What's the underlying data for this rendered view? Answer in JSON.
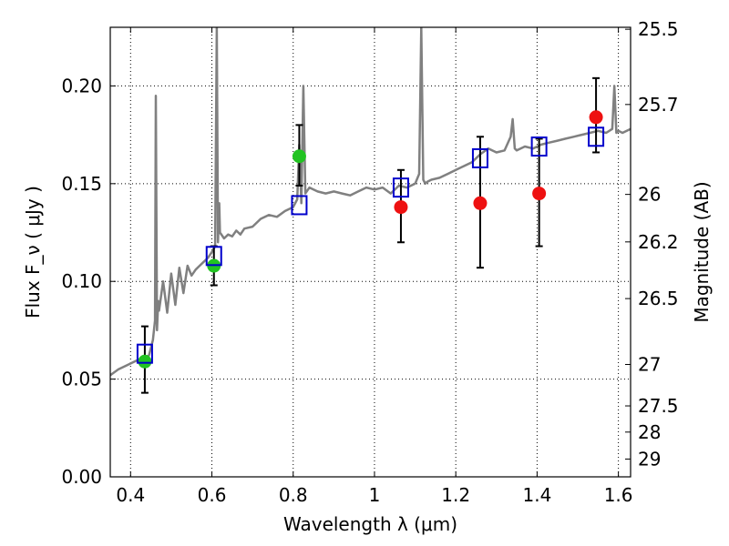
{
  "chart_data": {
    "type": "scatter",
    "title": "",
    "xlabel": "Wavelength  λ (μm)",
    "ylabel": "Flux  F_ν  ( μJy )",
    "y2label": "Magnitude (AB)",
    "xlim": [
      0.35,
      1.63
    ],
    "ylim": [
      0.0,
      0.23
    ],
    "grid": true,
    "xticks": [
      0.4,
      0.6,
      0.8,
      1.0,
      1.2,
      1.4,
      1.6
    ],
    "xtick_labels": [
      "0.4",
      "0.6",
      "0.8",
      "1",
      "1.2",
      "1.4",
      "1.6"
    ],
    "yticks": [
      0.0,
      0.05,
      0.1,
      0.15,
      0.2
    ],
    "ytick_labels": [
      "0.00",
      "0.05",
      "0.10",
      "0.15",
      "0.20"
    ],
    "y2ticks": [
      {
        "label": "25.5",
        "flux": 0.229
      },
      {
        "label": "25.7",
        "flux": 0.1905
      },
      {
        "label": "26",
        "flux": 0.1445
      },
      {
        "label": "26.2",
        "flux": 0.1202
      },
      {
        "label": "26.5",
        "flux": 0.0912
      },
      {
        "label": "27",
        "flux": 0.0575
      },
      {
        "label": "27.5",
        "flux": 0.0363
      },
      {
        "label": "28",
        "flux": 0.0229
      },
      {
        "label": "29",
        "flux": 0.0091
      }
    ],
    "colors": {
      "model_spectrum": "#808080",
      "model_photometry": "#0000cc",
      "detections": "#22c322",
      "upper_limits": "#ee1111",
      "errorbar": "#000000"
    },
    "series": [
      {
        "kind": "model_spectrum",
        "x": [
          0.35,
          0.37,
          0.39,
          0.41,
          0.43,
          0.445,
          0.455,
          0.46,
          0.462,
          0.465,
          0.468,
          0.47,
          0.48,
          0.49,
          0.5,
          0.51,
          0.52,
          0.53,
          0.54,
          0.55,
          0.56,
          0.57,
          0.58,
          0.59,
          0.6,
          0.608,
          0.612,
          0.615,
          0.618,
          0.62,
          0.63,
          0.64,
          0.65,
          0.66,
          0.67,
          0.68,
          0.7,
          0.72,
          0.74,
          0.76,
          0.78,
          0.8,
          0.81,
          0.815,
          0.82,
          0.825,
          0.83,
          0.84,
          0.85,
          0.86,
          0.88,
          0.9,
          0.92,
          0.94,
          0.96,
          0.98,
          1.0,
          1.02,
          1.04,
          1.06,
          1.08,
          1.1,
          1.11,
          1.115,
          1.12,
          1.125,
          1.13,
          1.14,
          1.16,
          1.18,
          1.2,
          1.22,
          1.24,
          1.26,
          1.28,
          1.3,
          1.32,
          1.335,
          1.34,
          1.345,
          1.35,
          1.37,
          1.39,
          1.41,
          1.43,
          1.45,
          1.47,
          1.49,
          1.51,
          1.53,
          1.55,
          1.57,
          1.585,
          1.59,
          1.595,
          1.6,
          1.61,
          1.63
        ],
        "y": [
          0.052,
          0.055,
          0.057,
          0.059,
          0.061,
          0.062,
          0.07,
          0.08,
          0.195,
          0.075,
          0.09,
          0.085,
          0.1,
          0.084,
          0.104,
          0.088,
          0.107,
          0.094,
          0.108,
          0.103,
          0.106,
          0.108,
          0.11,
          0.112,
          0.115,
          0.118,
          0.23,
          0.12,
          0.14,
          0.125,
          0.122,
          0.124,
          0.123,
          0.126,
          0.124,
          0.127,
          0.128,
          0.132,
          0.134,
          0.133,
          0.136,
          0.138,
          0.142,
          0.17,
          0.14,
          0.2,
          0.145,
          0.148,
          0.147,
          0.146,
          0.145,
          0.146,
          0.145,
          0.144,
          0.146,
          0.148,
          0.147,
          0.148,
          0.145,
          0.149,
          0.148,
          0.15,
          0.155,
          0.23,
          0.152,
          0.15,
          0.151,
          0.152,
          0.153,
          0.155,
          0.157,
          0.159,
          0.161,
          0.165,
          0.168,
          0.166,
          0.167,
          0.174,
          0.183,
          0.168,
          0.167,
          0.169,
          0.168,
          0.17,
          0.171,
          0.172,
          0.173,
          0.174,
          0.175,
          0.176,
          0.177,
          0.176,
          0.178,
          0.2,
          0.176,
          0.177,
          0.176,
          0.178
        ]
      },
      {
        "kind": "model_photometry",
        "marker": "open-square",
        "x": [
          0.435,
          0.605,
          0.815,
          1.065,
          1.26,
          1.405,
          1.545
        ],
        "y": [
          0.063,
          0.113,
          0.139,
          0.148,
          0.163,
          0.169,
          0.174
        ]
      },
      {
        "kind": "detections",
        "marker": "filled-circle",
        "x": [
          0.435,
          0.605,
          0.815
        ],
        "y": [
          0.059,
          0.108,
          0.164
        ],
        "yerr_low": [
          0.016,
          0.01,
          0.015
        ],
        "yerr_high": [
          0.018,
          0.01,
          0.016
        ]
      },
      {
        "kind": "upper_limits",
        "marker": "filled-circle",
        "x": [
          1.065,
          1.26,
          1.405,
          1.545
        ],
        "y": [
          0.138,
          0.14,
          0.145,
          0.184
        ],
        "yerr_low": [
          0.018,
          0.033,
          0.027,
          0.018
        ],
        "yerr_high": [
          0.019,
          0.034,
          0.028,
          0.02
        ]
      }
    ]
  }
}
